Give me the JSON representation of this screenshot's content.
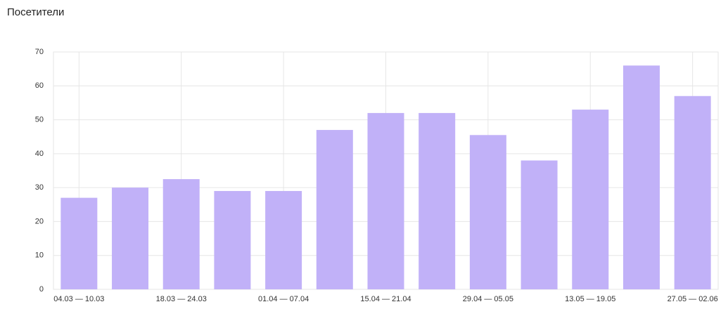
{
  "chart_data": {
    "type": "bar",
    "title": "Посетители",
    "categories": [
      "04.03 — 10.03",
      null,
      "18.03 — 24.03",
      null,
      "01.04 — 07.04",
      null,
      "15.04 — 21.04",
      null,
      "29.04 — 05.05",
      null,
      "13.05 — 19.05",
      null,
      "27.05 — 02.06"
    ],
    "values": [
      27,
      30,
      32.5,
      29,
      29,
      47,
      52,
      52,
      45.5,
      38,
      53,
      66,
      57
    ],
    "color": "#c1b1f8",
    "ylim": [
      0,
      70
    ],
    "yticks": [
      0,
      10,
      20,
      30,
      40,
      50,
      60,
      70
    ],
    "grid": true
  }
}
